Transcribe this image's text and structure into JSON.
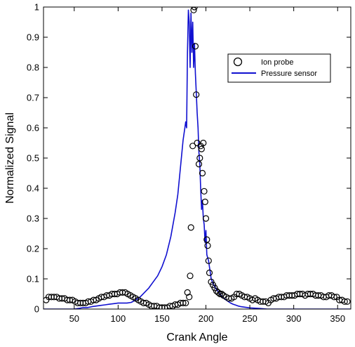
{
  "chart_data": {
    "type": "line",
    "xlabel": "Crank Angle",
    "ylabel": "Normalized Signal",
    "xlim": [
      15,
      365
    ],
    "ylim": [
      0,
      1
    ],
    "x_ticks": [
      50,
      100,
      150,
      200,
      250,
      300,
      350
    ],
    "y_ticks": [
      0,
      0.1,
      0.2,
      0.3,
      0.4,
      0.5,
      0.6,
      0.7,
      0.8,
      0.9,
      1
    ],
    "y_tick_labels": [
      "0",
      "0.1",
      "0.2",
      "0.3",
      "0.4",
      "0.5",
      "0.6",
      "0.7",
      "0.8",
      "0.9",
      "1"
    ],
    "grid": false,
    "legend": {
      "position": "top-right"
    },
    "series": [
      {
        "name": "Ion probe",
        "marker": "open-circle",
        "color": "#000000",
        "x": [
          18,
          21,
          24,
          27,
          30,
          33,
          36,
          39,
          42,
          45,
          48,
          51,
          54,
          57,
          60,
          63,
          66,
          69,
          72,
          75,
          78,
          81,
          84,
          87,
          90,
          93,
          96,
          99,
          102,
          105,
          108,
          111,
          114,
          117,
          120,
          123,
          126,
          129,
          132,
          135,
          138,
          141,
          144,
          147,
          150,
          153,
          156,
          159,
          162,
          165,
          168,
          171,
          174,
          177,
          179,
          181,
          182,
          183,
          185,
          186,
          187,
          188,
          189,
          190,
          192,
          193,
          194,
          195,
          196,
          197,
          198,
          199,
          200,
          201,
          202,
          203,
          204,
          206,
          208,
          210,
          212,
          214,
          216,
          218,
          220,
          223,
          226,
          229,
          232,
          235,
          238,
          241,
          244,
          247,
          250,
          253,
          256,
          259,
          262,
          265,
          268,
          271,
          274,
          277,
          280,
          283,
          286,
          289,
          292,
          295,
          298,
          301,
          304,
          307,
          310,
          313,
          316,
          319,
          322,
          325,
          328,
          331,
          334,
          337,
          340,
          343,
          346,
          349,
          352,
          355,
          358,
          361
        ],
        "y": [
          0.03,
          0.04,
          0.04,
          0.04,
          0.04,
          0.035,
          0.035,
          0.035,
          0.03,
          0.03,
          0.03,
          0.025,
          0.02,
          0.02,
          0.02,
          0.02,
          0.025,
          0.025,
          0.03,
          0.03,
          0.035,
          0.04,
          0.04,
          0.045,
          0.045,
          0.05,
          0.05,
          0.05,
          0.055,
          0.055,
          0.055,
          0.05,
          0.045,
          0.04,
          0.035,
          0.03,
          0.025,
          0.02,
          0.02,
          0.015,
          0.01,
          0.01,
          0.01,
          0.005,
          0.005,
          0.005,
          0.005,
          0.01,
          0.01,
          0.015,
          0.015,
          0.02,
          0.02,
          0.02,
          0.055,
          0.04,
          0.11,
          0.27,
          0.54,
          0.99,
          1.0,
          0.87,
          0.71,
          0.55,
          0.48,
          0.5,
          0.54,
          0.53,
          0.45,
          0.55,
          0.39,
          0.355,
          0.3,
          0.23,
          0.21,
          0.16,
          0.12,
          0.09,
          0.08,
          0.07,
          0.06,
          0.055,
          0.05,
          0.05,
          0.045,
          0.04,
          0.035,
          0.035,
          0.04,
          0.05,
          0.05,
          0.045,
          0.04,
          0.04,
          0.035,
          0.03,
          0.035,
          0.03,
          0.025,
          0.025,
          0.025,
          0.02,
          0.03,
          0.035,
          0.035,
          0.04,
          0.04,
          0.04,
          0.045,
          0.045,
          0.045,
          0.045,
          0.05,
          0.05,
          0.05,
          0.045,
          0.05,
          0.05,
          0.05,
          0.045,
          0.045,
          0.045,
          0.04,
          0.04,
          0.045,
          0.045,
          0.04,
          0.04,
          0.03,
          0.03,
          0.025,
          0.025
        ]
      },
      {
        "name": "Pressure sensor",
        "marker": "line",
        "color": "#1010d0",
        "x": [
          15,
          20,
          25,
          30,
          35,
          40,
          45,
          50,
          55,
          60,
          65,
          70,
          75,
          80,
          85,
          90,
          95,
          100,
          105,
          110,
          115,
          120,
          125,
          130,
          135,
          140,
          145,
          150,
          155,
          160,
          165,
          168,
          170,
          172,
          174,
          176,
          177,
          178,
          179,
          180,
          181,
          182,
          183,
          184,
          185,
          186,
          187,
          188,
          189,
          190,
          191,
          192,
          193,
          194,
          195,
          196,
          197,
          198,
          199,
          200,
          201,
          202,
          203,
          204,
          205,
          206,
          208,
          210,
          212,
          214,
          216,
          218,
          220,
          222,
          225,
          228,
          231,
          234,
          237,
          240,
          245,
          250,
          255,
          260,
          265,
          270,
          280,
          290,
          300,
          310,
          320,
          330,
          340,
          350,
          360,
          365
        ],
        "y": [
          0.0,
          0.0,
          0.0,
          0.0,
          0.0,
          0.0,
          0.0,
          0.0,
          0.002,
          0.005,
          0.005,
          0.008,
          0.01,
          0.012,
          0.014,
          0.016,
          0.018,
          0.02,
          0.02,
          0.02,
          0.022,
          0.03,
          0.04,
          0.055,
          0.07,
          0.09,
          0.11,
          0.14,
          0.18,
          0.24,
          0.32,
          0.38,
          0.44,
          0.5,
          0.56,
          0.6,
          0.62,
          0.6,
          0.85,
          0.99,
          0.95,
          0.8,
          0.98,
          0.85,
          0.95,
          0.8,
          0.88,
          0.78,
          0.72,
          0.65,
          0.6,
          0.52,
          0.48,
          0.4,
          0.33,
          0.36,
          0.3,
          0.28,
          0.22,
          0.26,
          0.18,
          0.17,
          0.16,
          0.14,
          0.12,
          0.1,
          0.085,
          0.075,
          0.065,
          0.058,
          0.05,
          0.043,
          0.037,
          0.032,
          0.026,
          0.02,
          0.016,
          0.013,
          0.01,
          0.008,
          0.006,
          0.004,
          0.003,
          0.002,
          0.001,
          0.0,
          0.0,
          0.0,
          0.0,
          0.0,
          0.0,
          0.0,
          0.0,
          0.0,
          0.0,
          0.0
        ]
      }
    ]
  }
}
